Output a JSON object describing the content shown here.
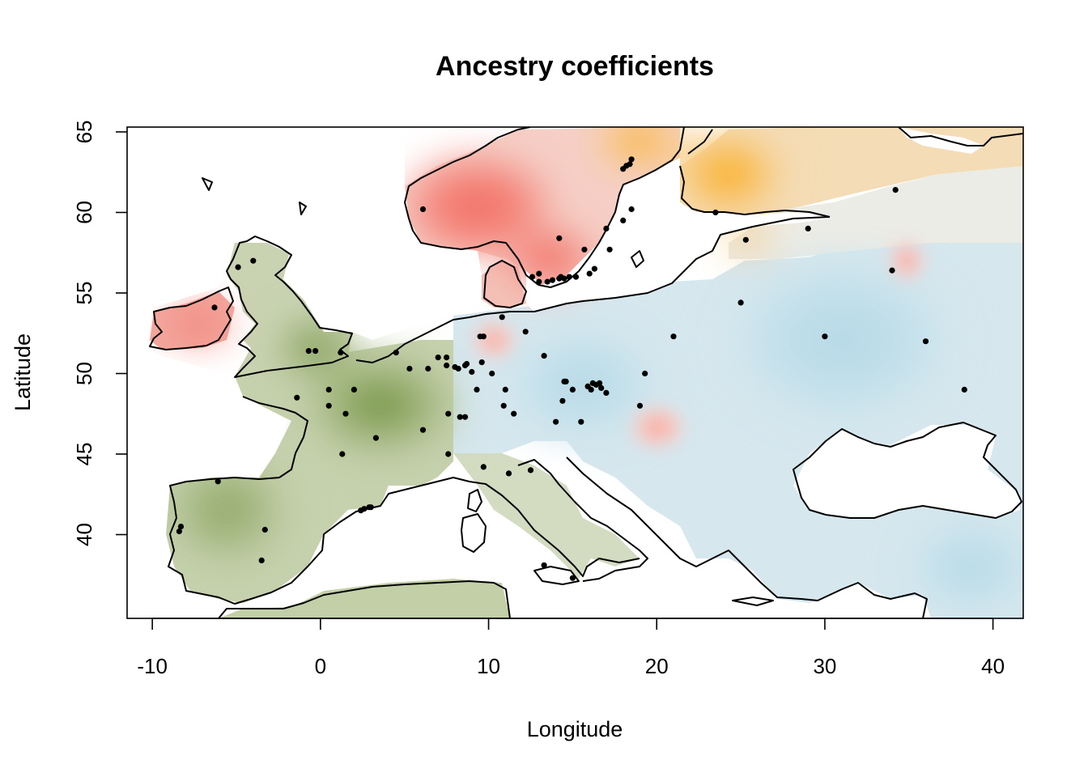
{
  "chart_data": {
    "type": "map",
    "title": "Ancestry coefficients",
    "xlabel": "Longitude",
    "ylabel": "Latitude",
    "xlim": [
      -11.5,
      41.8
    ],
    "ylim": [
      34.8,
      65.3
    ],
    "x_ticks": [
      -10,
      0,
      10,
      20,
      30,
      40
    ],
    "y_ticks": [
      40,
      45,
      50,
      55,
      60,
      65
    ],
    "colors": {
      "green": "#6e8f3a",
      "red": "#f26f64",
      "blue": "#b6d9e6",
      "orange": "#f7a600",
      "land_base": "#e9ece4"
    },
    "sample_points": [
      [
        -8.4,
        40.2
      ],
      [
        -8.3,
        40.5
      ],
      [
        -6.1,
        43.3
      ],
      [
        -3.3,
        40.3
      ],
      [
        -3.5,
        38.4
      ],
      [
        -6.3,
        54.1
      ],
      [
        -4.9,
        56.6
      ],
      [
        -4.0,
        57.0
      ],
      [
        -0.7,
        51.4
      ],
      [
        -1.4,
        48.5
      ],
      [
        0.5,
        49.0
      ],
      [
        0.5,
        48.0
      ],
      [
        1.5,
        47.5
      ],
      [
        1.3,
        45.0
      ],
      [
        2.0,
        49.0
      ],
      [
        3.3,
        46.0
      ],
      [
        2.4,
        41.5
      ],
      [
        2.6,
        41.6
      ],
      [
        2.9,
        41.7
      ],
      [
        3.0,
        41.7
      ],
      [
        4.5,
        51.3
      ],
      [
        5.3,
        50.3
      ],
      [
        6.1,
        46.5
      ],
      [
        6.4,
        50.3
      ],
      [
        7.0,
        51.0
      ],
      [
        7.5,
        51.0
      ],
      [
        7.5,
        50.5
      ],
      [
        7.6,
        47.5
      ],
      [
        7.6,
        45.0
      ],
      [
        8.0,
        50.4
      ],
      [
        8.2,
        50.3
      ],
      [
        8.3,
        47.3
      ],
      [
        8.6,
        47.3
      ],
      [
        8.6,
        50.5
      ],
      [
        8.7,
        50.6
      ],
      [
        9.0,
        50.1
      ],
      [
        9.5,
        52.3
      ],
      [
        9.7,
        52.3
      ],
      [
        9.6,
        50.7
      ],
      [
        9.3,
        49.0
      ],
      [
        9.7,
        44.2
      ],
      [
        10.2,
        50.0
      ],
      [
        10.8,
        53.5
      ],
      [
        10.9,
        48.0
      ],
      [
        11.0,
        49.0
      ],
      [
        11.2,
        43.8
      ],
      [
        11.5,
        47.5
      ],
      [
        12.2,
        52.6
      ],
      [
        12.5,
        44.0
      ],
      [
        13.3,
        51.1
      ],
      [
        13.3,
        38.1
      ],
      [
        14.0,
        47.0
      ],
      [
        14.2,
        58.4
      ],
      [
        14.5,
        49.5
      ],
      [
        14.4,
        48.3
      ],
      [
        14.6,
        49.5
      ],
      [
        15.0,
        49.0
      ],
      [
        15.0,
        37.3
      ],
      [
        15.5,
        47.0
      ],
      [
        15.7,
        57.7
      ],
      [
        15.9,
        49.2
      ],
      [
        16.1,
        49.0
      ],
      [
        16.2,
        49.4
      ],
      [
        16.4,
        49.3
      ],
      [
        16.6,
        49.4
      ],
      [
        16.7,
        49.1
      ],
      [
        17.0,
        48.8
      ],
      [
        17.2,
        57.7
      ],
      [
        18.5,
        60.2
      ],
      [
        19.0,
        48.0
      ],
      [
        19.3,
        50.0
      ],
      [
        21.0,
        52.3
      ],
      [
        23.5,
        60.0
      ],
      [
        25.0,
        54.4
      ],
      [
        25.3,
        58.3
      ],
      [
        29.0,
        59.0
      ],
      [
        30.0,
        52.3
      ],
      [
        34.0,
        56.4
      ],
      [
        34.2,
        61.4
      ],
      [
        36.0,
        52.0
      ],
      [
        38.3,
        49.0
      ],
      [
        13.0,
        55.7
      ],
      [
        13.5,
        55.7
      ],
      [
        13.8,
        55.8
      ],
      [
        14.2,
        55.9
      ],
      [
        14.3,
        56.0
      ],
      [
        14.5,
        55.9
      ],
      [
        14.8,
        56.0
      ],
      [
        15.2,
        56.0
      ],
      [
        16.0,
        56.2
      ],
      [
        16.3,
        56.5
      ],
      [
        12.6,
        56.0
      ],
      [
        13.0,
        56.2
      ],
      [
        17.0,
        59.0
      ],
      [
        18.0,
        59.5
      ],
      [
        18.0,
        62.7
      ],
      [
        18.2,
        62.9
      ],
      [
        18.4,
        63.0
      ],
      [
        18.5,
        63.3
      ],
      [
        6.1,
        60.2
      ],
      [
        -0.3,
        51.4
      ],
      [
        1.2,
        51.3
      ]
    ]
  }
}
